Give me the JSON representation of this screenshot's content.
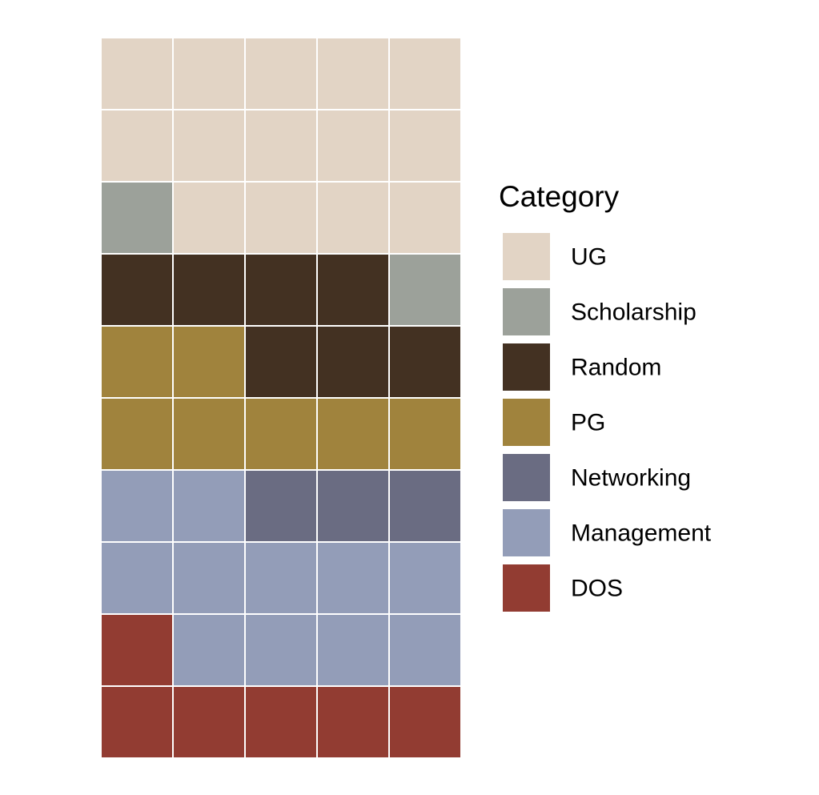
{
  "chart_data": {
    "type": "waffle",
    "columns": 5,
    "rows": 10,
    "fill_order": "bottom-left to right, row by row upward",
    "legend_title": "Category",
    "legend_position": "right",
    "series": [
      {
        "name": "DOS",
        "value": 6,
        "color": "#923c32"
      },
      {
        "name": "Management",
        "value": 11,
        "color": "#939db8"
      },
      {
        "name": "Networking",
        "value": 3,
        "color": "#6a6c82"
      },
      {
        "name": "PG",
        "value": 7,
        "color": "#a0833d"
      },
      {
        "name": "Random",
        "value": 7,
        "color": "#433122"
      },
      {
        "name": "Scholarship",
        "value": 2,
        "color": "#9ca19a"
      },
      {
        "name": "UG",
        "value": 14,
        "color": "#e2d4c5"
      }
    ],
    "legend_order": [
      "UG",
      "Scholarship",
      "Random",
      "PG",
      "Networking",
      "Management",
      "DOS"
    ]
  }
}
